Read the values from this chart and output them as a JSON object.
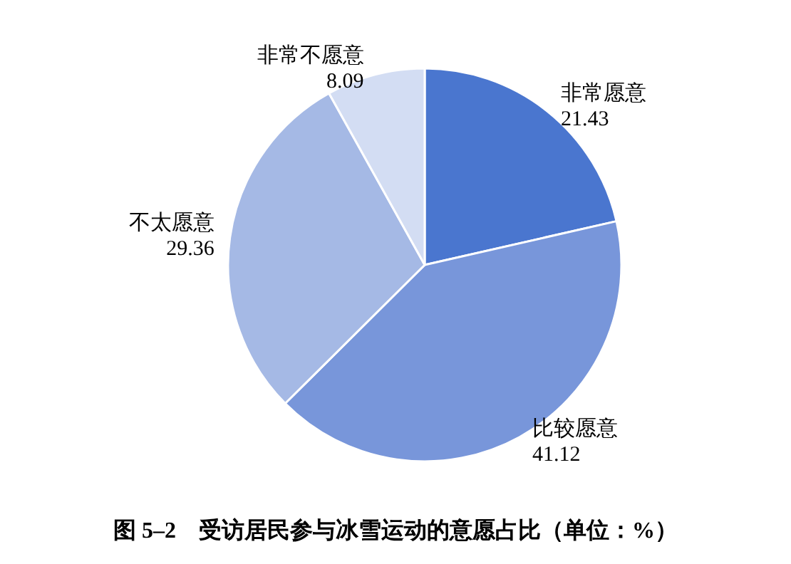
{
  "chart_data": {
    "type": "pie",
    "title": "图 5–2　受访居民参与冰雪运动的意愿占比（单位：%）",
    "categories": [
      "非常愿意",
      "比较愿意",
      "不太愿意",
      "非常不愿意"
    ],
    "values": [
      21.43,
      41.12,
      29.36,
      8.09
    ],
    "colors": [
      "#4a76cf",
      "#7896da",
      "#a5b9e5",
      "#d3ddf3"
    ],
    "data_labels": true,
    "legend": false
  }
}
